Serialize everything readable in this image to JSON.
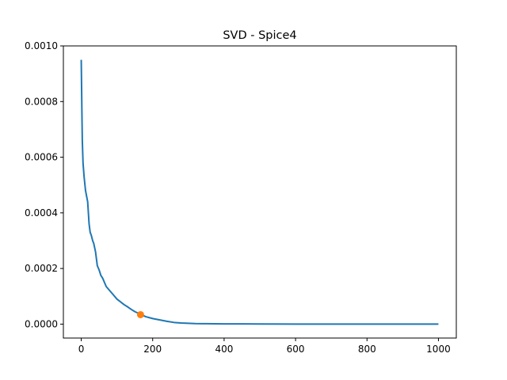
{
  "chart_data": {
    "type": "line",
    "title": "SVD - Spice4",
    "xlabel": "",
    "ylabel": "",
    "xlim": [
      -50,
      1050
    ],
    "ylim": [
      -5e-05,
      0.001
    ],
    "xticks": [
      0,
      200,
      400,
      600,
      800,
      1000
    ],
    "xtick_labels": [
      "0",
      "200",
      "400",
      "600",
      "800",
      "1000"
    ],
    "yticks": [
      0,
      0.0002,
      0.0004,
      0.0006,
      0.0008,
      0.001
    ],
    "ytick_labels": [
      "0.0000",
      "0.0002",
      "0.0004",
      "0.0006",
      "0.0008",
      "0.0010"
    ],
    "grid": false,
    "series": [
      {
        "color": "#1f77b4",
        "x": [
          0,
          1,
          2,
          3,
          5,
          8,
          12,
          15,
          18,
          20,
          22,
          25,
          28,
          30,
          32,
          35,
          40,
          45,
          50,
          55,
          60,
          65,
          70,
          80,
          90,
          100,
          110,
          120,
          130,
          140,
          150,
          160,
          170,
          180,
          200,
          220,
          240,
          260,
          280,
          300,
          320,
          350,
          400,
          450,
          500,
          600,
          700,
          800,
          900,
          1000
        ],
        "y": [
          0.00095,
          0.00085,
          0.00075,
          0.00066,
          0.00058,
          0.00053,
          0.00048,
          0.00046,
          0.00044,
          0.0004,
          0.00036,
          0.00033,
          0.00032,
          0.00031,
          0.0003,
          0.00029,
          0.00026,
          0.00021,
          0.000195,
          0.000175,
          0.000165,
          0.00015,
          0.000135,
          0.00012,
          0.000105,
          9e-05,
          8e-05,
          7e-05,
          6.2e-05,
          5.3e-05,
          4.5e-05,
          3.9e-05,
          3.3e-05,
          2.7e-05,
          2e-05,
          1.5e-05,
          1e-05,
          6e-06,
          4e-06,
          3e-06,
          2e-06,
          1.5e-06,
          1e-06,
          7e-07,
          5e-07,
          3e-07,
          2e-07,
          1e-07,
          5e-08,
          0.0
        ]
      }
    ],
    "marker": {
      "x": 166,
      "y": 3.4e-05,
      "color": "#ff7f0e"
    }
  }
}
